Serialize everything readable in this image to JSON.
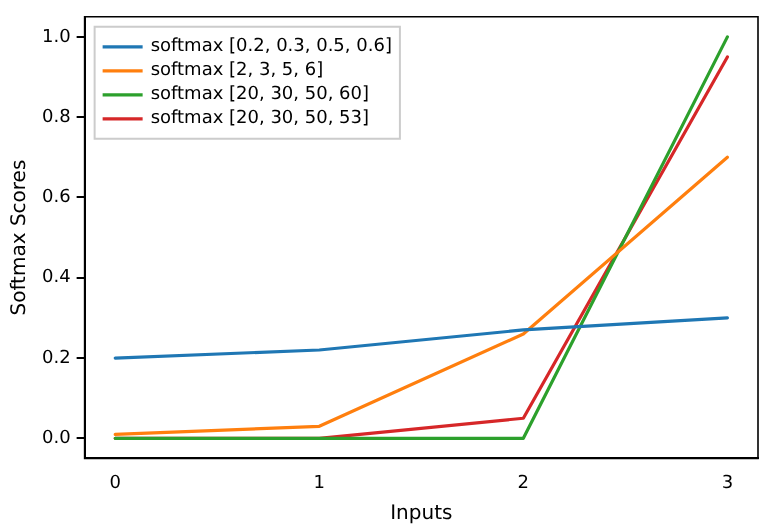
{
  "chart_data": {
    "type": "line",
    "xlabel": "Inputs",
    "ylabel": "Softmax Scores",
    "x": [
      0,
      1,
      2,
      3
    ],
    "series": [
      {
        "name": "softmax [0.2, 0.3, 0.5, 0.6]",
        "color": "#1f77b4",
        "values": [
          0.2,
          0.22,
          0.27,
          0.3
        ]
      },
      {
        "name": "softmax [2, 3, 5, 6]",
        "color": "#ff7f0e",
        "values": [
          0.01,
          0.03,
          0.26,
          0.7
        ]
      },
      {
        "name": "softmax [20, 30, 50, 60]",
        "color": "#2ca02c",
        "values": [
          0,
          0,
          0,
          1
        ]
      },
      {
        "name": "softmax [20, 30, 50, 53]",
        "color": "#d62728",
        "values": [
          0,
          0,
          0.05,
          0.95
        ]
      }
    ],
    "xlim": [
      -0.15,
      3.15
    ],
    "xticks": [
      0,
      1,
      2,
      3
    ],
    "ylim": [
      -0.05,
      1.05
    ],
    "yticks": [
      {
        "value": 0,
        "label": "0.0"
      },
      0.2,
      0.4,
      0.6,
      0.8,
      {
        "value": 1,
        "label": "1.0"
      }
    ],
    "grid": false,
    "legend": "top left",
    "marker": "none",
    "line_style": "solid"
  }
}
